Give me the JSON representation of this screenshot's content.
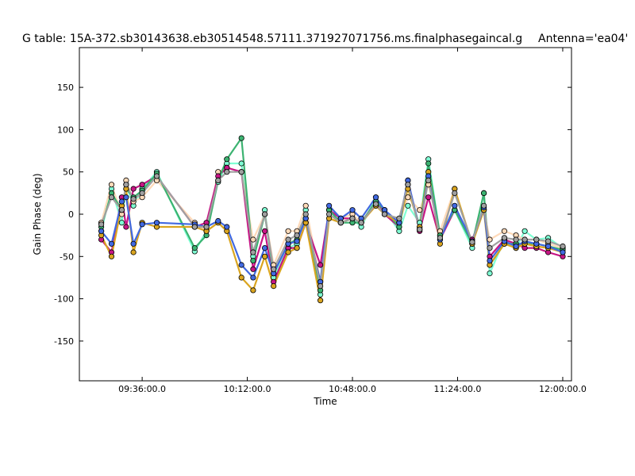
{
  "chart_data": {
    "type": "line",
    "title": "G table: 15A-372.sb30143638.eb30514548.57111.371927071756.ms.finalphasegaincal.g",
    "subtitle": "Antenna='ea04'",
    "xlabel": "Time",
    "ylabel": "Gain Phase (deg)",
    "xlim": [
      "09:14:30",
      "12:03:00"
    ],
    "ylim": [
      -197,
      197
    ],
    "y_ticks": [
      -150,
      -100,
      -50,
      0,
      50,
      100,
      150
    ],
    "x_ticks": [
      "09:36:00.0",
      "10:12:00.0",
      "10:48:00.0",
      "11:24:00.0",
      "12:00:00.0"
    ],
    "grid": false,
    "legend": "none",
    "x": [
      "09:22:00",
      "09:25:30",
      "09:29:00",
      "09:30:30",
      "09:33:00",
      "09:36:00",
      "09:41:00",
      "09:54:00",
      "09:58:00",
      "10:02:00",
      "10:05:00",
      "10:10:00",
      "10:14:00",
      "10:18:00",
      "10:21:00",
      "10:26:00",
      "10:29:00",
      "10:32:00",
      "10:37:00",
      "10:40:00",
      "10:44:00",
      "10:48:00",
      "10:51:00",
      "10:56:00",
      "10:59:00",
      "11:04:00",
      "11:07:00",
      "11:11:00",
      "11:14:00",
      "11:18:00",
      "11:23:00",
      "11:29:00",
      "11:33:00",
      "11:35:00",
      "11:40:00",
      "11:44:00",
      "11:47:00",
      "11:51:00",
      "11:55:00",
      "12:00:00"
    ],
    "series": [
      {
        "color": "#7fffd4",
        "values": [
          -20,
          30,
          -10,
          35,
          10,
          30,
          50,
          -44,
          -20,
          38,
          60,
          60,
          -50,
          5,
          -75,
          -40,
          -35,
          5,
          -95,
          5,
          -10,
          -5,
          -15,
          20,
          5,
          -20,
          10,
          -10,
          65,
          -25,
          5,
          -40,
          25,
          -70,
          -30,
          -40,
          -20,
          -30,
          -28,
          -40
        ]
      },
      {
        "color": "#ffdab9",
        "values": [
          -10,
          35,
          0,
          40,
          15,
          20,
          40,
          -10,
          -20,
          50,
          55,
          50,
          -30,
          0,
          -60,
          -20,
          -20,
          10,
          -80,
          5,
          -5,
          0,
          -10,
          10,
          0,
          -10,
          20,
          5,
          35,
          -20,
          30,
          -35,
          5,
          -30,
          -20,
          -25,
          -30,
          -30,
          -35,
          -40
        ]
      },
      {
        "color": "#c71585",
        "values": [
          -30,
          -45,
          20,
          -15,
          30,
          35,
          45,
          -15,
          -10,
          45,
          55,
          50,
          -65,
          -20,
          -80,
          -40,
          -40,
          -10,
          -60,
          5,
          -5,
          -5,
          -10,
          15,
          0,
          -15,
          40,
          -20,
          20,
          -30,
          5,
          -30,
          5,
          -50,
          -30,
          -35,
          -40,
          -40,
          -45,
          -50
        ]
      },
      {
        "color": "#3cb371",
        "values": [
          -15,
          25,
          5,
          30,
          20,
          28,
          48,
          -40,
          -25,
          40,
          65,
          90,
          -55,
          0,
          -70,
          -35,
          -30,
          -5,
          -90,
          5,
          -10,
          -10,
          -10,
          15,
          5,
          -15,
          35,
          -15,
          60,
          -25,
          5,
          -35,
          25,
          -60,
          -35,
          -35,
          -35,
          -35,
          -38,
          -42
        ]
      },
      {
        "color": "#daa520",
        "values": [
          -25,
          -50,
          10,
          30,
          -45,
          -10,
          -15,
          -15,
          -20,
          -10,
          -20,
          -75,
          -90,
          -50,
          -85,
          -45,
          -40,
          -10,
          -102,
          -5,
          -10,
          -5,
          -10,
          10,
          0,
          -10,
          30,
          -15,
          50,
          -35,
          30,
          -35,
          5,
          -60,
          -35,
          -40,
          -35,
          -38,
          -40,
          -45
        ]
      },
      {
        "color": "#4169e1",
        "values": [
          -20,
          -35,
          15,
          20,
          -35,
          -12,
          -10,
          -12,
          -15,
          -8,
          -15,
          -60,
          -75,
          -40,
          -70,
          -35,
          -32,
          -5,
          -80,
          10,
          -5,
          5,
          -5,
          20,
          5,
          -10,
          40,
          -18,
          45,
          -30,
          10,
          -32,
          8,
          -55,
          -32,
          -38,
          -32,
          -35,
          -38,
          -45
        ]
      },
      {
        "color": "#a0a0a0",
        "values": [
          -12,
          20,
          5,
          35,
          18,
          25,
          45,
          -15,
          -15,
          40,
          50,
          50,
          -45,
          0,
          -65,
          -30,
          -25,
          0,
          -85,
          0,
          -10,
          -5,
          -10,
          12,
          0,
          -5,
          35,
          -18,
          40,
          -28,
          25,
          -33,
          10,
          -40,
          -28,
          -30,
          -30,
          -30,
          -32,
          -38
        ]
      }
    ]
  }
}
